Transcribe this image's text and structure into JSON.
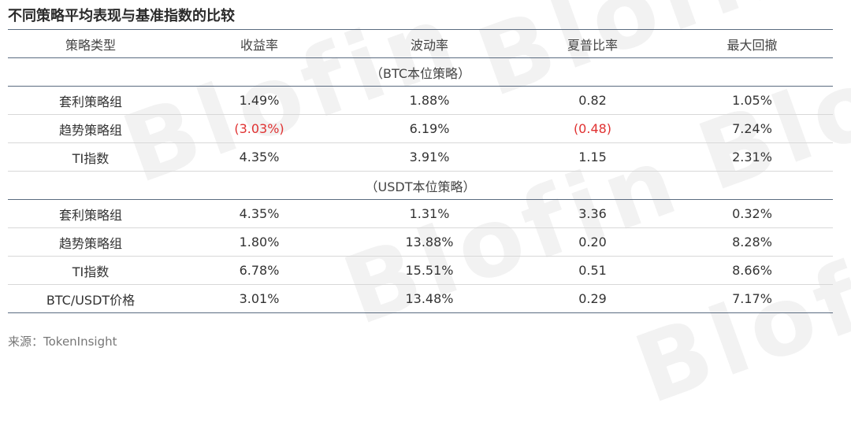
{
  "title": "不同策略平均表现与基准指数的比较",
  "watermark": "Blofin",
  "columns": [
    "策略类型",
    "收益率",
    "波动率",
    "夏普比率",
    "最大回撤"
  ],
  "sections": [
    {
      "label": "（BTC本位策略）",
      "rows": [
        {
          "cells": [
            "套利策略组",
            "1.49%",
            "1.88%",
            "0.82",
            "1.05%"
          ],
          "negative": [
            false,
            false,
            false,
            false,
            false
          ]
        },
        {
          "cells": [
            "趋势策略组",
            "(3.03%)",
            "6.19%",
            "(0.48)",
            "7.24%"
          ],
          "negative": [
            false,
            true,
            false,
            true,
            false
          ]
        },
        {
          "cells": [
            "TI指数",
            "4.35%",
            "3.91%",
            "1.15",
            "2.31%"
          ],
          "negative": [
            false,
            false,
            false,
            false,
            false
          ]
        }
      ]
    },
    {
      "label": "（USDT本位策略）",
      "rows": [
        {
          "cells": [
            "套利策略组",
            "4.35%",
            "1.31%",
            "3.36",
            "0.32%"
          ],
          "negative": [
            false,
            false,
            false,
            false,
            false
          ]
        },
        {
          "cells": [
            "趋势策略组",
            "1.80%",
            "13.88%",
            "0.20",
            "8.28%"
          ],
          "negative": [
            false,
            false,
            false,
            false,
            false
          ]
        },
        {
          "cells": [
            "TI指数",
            "6.78%",
            "15.51%",
            "0.51",
            "8.66%"
          ],
          "negative": [
            false,
            false,
            false,
            false,
            false
          ]
        },
        {
          "cells": [
            "BTC/USDT价格",
            "3.01%",
            "13.48%",
            "0.29",
            "7.17%"
          ],
          "negative": [
            false,
            false,
            false,
            false,
            false
          ]
        }
      ]
    }
  ],
  "source": "来源：TokenInsight",
  "colors": {
    "negative": "#e03131",
    "rule": "#5a6b80",
    "text": "#333333"
  }
}
